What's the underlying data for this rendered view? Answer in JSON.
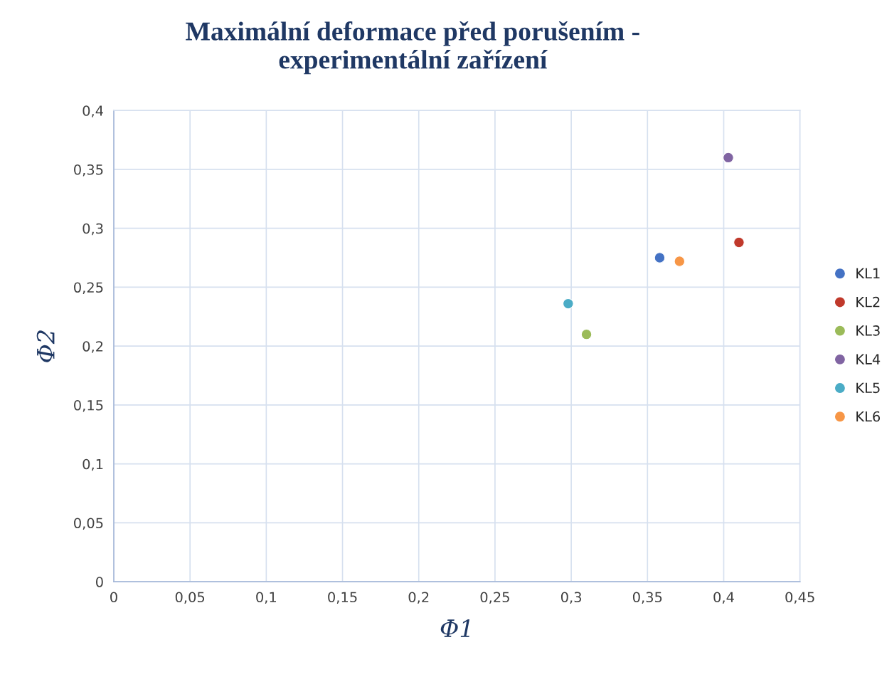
{
  "chart_data": {
    "type": "scatter",
    "title": "Maximální deformace před porušením -\nexperimentální zařízení",
    "xlabel": "Φ1",
    "ylabel": "Φ2",
    "series": [
      {
        "name": "KL1",
        "color": "#4472c4",
        "x": [
          0.358
        ],
        "values": [
          0.275
        ]
      },
      {
        "name": "KL2",
        "color": "#c0392b",
        "x": [
          0.41
        ],
        "values": [
          0.288
        ]
      },
      {
        "name": "KL3",
        "color": "#9bbb59",
        "x": [
          0.31
        ],
        "values": [
          0.21
        ]
      },
      {
        "name": "KL4",
        "color": "#8064a2",
        "x": [
          0.403
        ],
        "values": [
          0.36
        ]
      },
      {
        "name": "KL5",
        "color": "#4bacc6",
        "x": [
          0.298
        ],
        "values": [
          0.236
        ]
      },
      {
        "name": "KL6",
        "color": "#f79646",
        "x": [
          0.371
        ],
        "values": [
          0.272
        ]
      }
    ],
    "xlim": [
      0,
      0.45
    ],
    "ylim": [
      0,
      0.4
    ],
    "xticks": [
      0,
      {
        "value": 0.05,
        "label": "0,05"
      },
      {
        "value": 0.1,
        "label": "0,1"
      },
      {
        "value": 0.15,
        "label": "0,15"
      },
      {
        "value": 0.2,
        "label": "0,2"
      },
      {
        "value": 0.25,
        "label": "0,25"
      },
      {
        "value": 0.3,
        "label": "0,3"
      },
      {
        "value": 0.35,
        "label": "0,35"
      },
      {
        "value": 0.4,
        "label": "0,4"
      },
      {
        "value": 0.45,
        "label": "0,45"
      }
    ],
    "yticks": [
      0,
      {
        "value": 0.05,
        "label": "0,05"
      },
      {
        "value": 0.1,
        "label": "0,1"
      },
      {
        "value": 0.15,
        "label": "0,15"
      },
      {
        "value": 0.2,
        "label": "0,2"
      },
      {
        "value": 0.25,
        "label": "0,25"
      },
      {
        "value": 0.3,
        "label": "0,3"
      },
      {
        "value": 0.35,
        "label": "0,35"
      },
      {
        "value": 0.4,
        "label": "0,4"
      }
    ],
    "grid": true,
    "legend": "right",
    "marker": "circle"
  }
}
